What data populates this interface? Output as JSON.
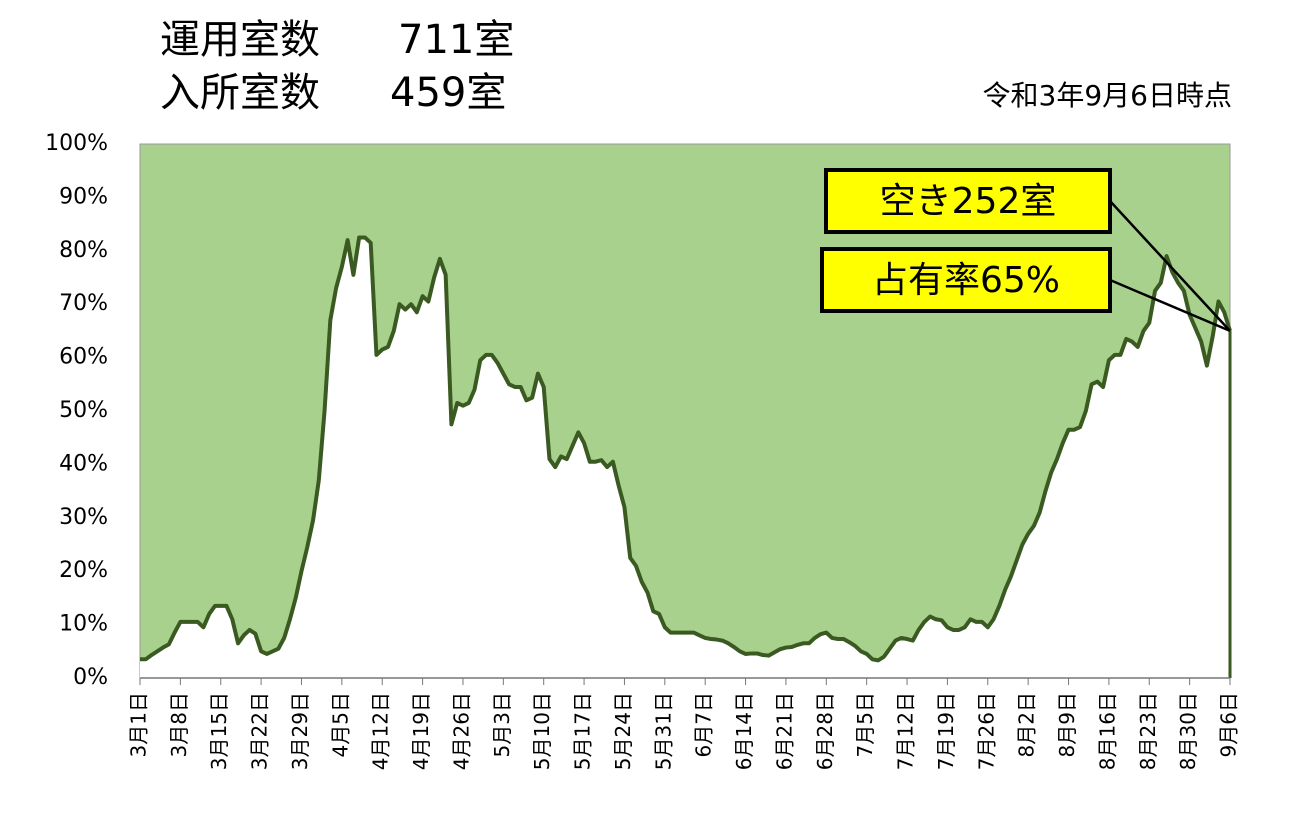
{
  "chart_data": {
    "type": "area",
    "header": [
      [
        "運用室数",
        "711室"
      ],
      [
        "入所室数",
        "459室"
      ]
    ],
    "subtitle": "令和3年9月6日時点",
    "annotations": [
      "空き252室",
      "占有率65%"
    ],
    "categories": [
      "3月1日",
      null,
      null,
      null,
      null,
      null,
      null,
      "3月8日",
      null,
      null,
      null,
      null,
      null,
      null,
      "3月15日",
      null,
      null,
      null,
      null,
      null,
      null,
      "3月22日",
      null,
      null,
      null,
      null,
      null,
      null,
      "3月29日",
      null,
      null,
      null,
      null,
      null,
      null,
      "4月5日",
      null,
      null,
      null,
      null,
      null,
      null,
      "4月12日",
      null,
      null,
      null,
      null,
      null,
      null,
      "4月19日",
      null,
      null,
      null,
      null,
      null,
      null,
      "4月26日",
      null,
      null,
      null,
      null,
      null,
      null,
      "5月3日",
      null,
      null,
      null,
      null,
      null,
      null,
      "5月10日",
      null,
      null,
      null,
      null,
      null,
      null,
      "5月17日",
      null,
      null,
      null,
      null,
      null,
      null,
      "5月24日",
      null,
      null,
      null,
      null,
      null,
      null,
      "5月31日",
      null,
      null,
      null,
      null,
      null,
      null,
      "6月7日",
      null,
      null,
      null,
      null,
      null,
      null,
      "6月14日",
      null,
      null,
      null,
      null,
      null,
      null,
      "6月21日",
      null,
      null,
      null,
      null,
      null,
      null,
      "6月28日",
      null,
      null,
      null,
      null,
      null,
      null,
      "7月5日",
      null,
      null,
      null,
      null,
      null,
      null,
      "7月12日",
      null,
      null,
      null,
      null,
      null,
      null,
      "7月19日",
      null,
      null,
      null,
      null,
      null,
      null,
      "7月26日",
      null,
      null,
      null,
      null,
      null,
      null,
      "8月2日",
      null,
      null,
      null,
      null,
      null,
      null,
      "8月9日",
      null,
      null,
      null,
      null,
      null,
      null,
      "8月16日",
      null,
      null,
      null,
      null,
      null,
      null,
      "8月23日",
      null,
      null,
      null,
      null,
      null,
      null,
      "8月30日",
      null,
      null,
      null,
      null,
      null,
      null,
      "9月6日"
    ],
    "values": [
      3.5,
      3.5,
      4.3,
      5,
      5.7,
      6.3,
      8.5,
      10.5,
      10.5,
      10.5,
      10.5,
      9.5,
      12,
      13.5,
      13.5,
      13.5,
      11,
      6.5,
      8,
      9,
      8.3,
      5,
      4.5,
      5,
      5.5,
      7.5,
      11,
      15,
      20,
      24.5,
      29.5,
      37,
      50,
      67,
      73,
      77,
      82,
      75.5,
      82.5,
      82.5,
      81.5,
      60.5,
      61.5,
      62,
      65,
      70,
      69,
      70,
      68.5,
      71.5,
      70.5,
      75,
      78.5,
      75.5,
      47.5,
      51.5,
      51,
      51.5,
      54,
      59.5,
      60.5,
      60.5,
      59,
      57,
      55,
      54.5,
      54.5,
      52,
      52.5,
      57,
      54.5,
      41,
      39.5,
      41.5,
      41,
      43.5,
      46,
      44,
      40.5,
      40.5,
      40.8,
      39.5,
      40.5,
      36,
      32,
      22.5,
      21,
      18,
      16,
      12.5,
      12,
      9.5,
      8.5,
      8.5,
      8.5,
      8.5,
      8.5,
      8,
      7.5,
      7.3,
      7.2,
      7,
      6.5,
      5.8,
      5,
      4.5,
      4.6,
      4.6,
      4.3,
      4.2,
      4.8,
      5.4,
      5.7,
      5.8,
      6.2,
      6.5,
      6.5,
      7.5,
      8.2,
      8.5,
      7.5,
      7.3,
      7.3,
      6.7,
      6,
      5,
      4.5,
      3.5,
      3.3,
      4,
      5.5,
      7,
      7.5,
      7.3,
      7,
      9,
      10.5,
      11.5,
      11,
      10.8,
      9.5,
      9,
      9,
      9.5,
      11,
      10.5,
      10.5,
      9.5,
      11,
      13.5,
      16.5,
      19,
      22,
      25,
      27,
      28.5,
      31,
      35,
      38.5,
      41,
      44,
      46.5,
      46.5,
      47,
      50,
      55,
      55.5,
      54.5,
      59.5,
      60.5,
      60.5,
      63.5,
      63,
      62,
      65,
      66.5,
      72.5,
      74,
      79,
      76,
      74,
      72.5,
      68,
      65.5,
      63,
      58.5,
      64,
      70.5,
      68.5,
      65
    ],
    "color": "#3a5a22",
    "fill_color": "#a9d18e",
    "ylim": [
      0,
      100
    ],
    "yticks": [
      {
        "value": 0,
        "label": "0%"
      },
      {
        "value": 10,
        "label": "10%"
      },
      {
        "value": 20,
        "label": "20%"
      },
      {
        "value": 30,
        "label": "30%"
      },
      {
        "value": 40,
        "label": "40%"
      },
      {
        "value": 50,
        "label": "50%"
      },
      {
        "value": 60,
        "label": "60%"
      },
      {
        "value": 70,
        "label": "70%"
      },
      {
        "value": 80,
        "label": "80%"
      },
      {
        "value": 90,
        "label": "90%"
      },
      {
        "value": 100,
        "label": "100%"
      }
    ],
    "grid": false
  }
}
